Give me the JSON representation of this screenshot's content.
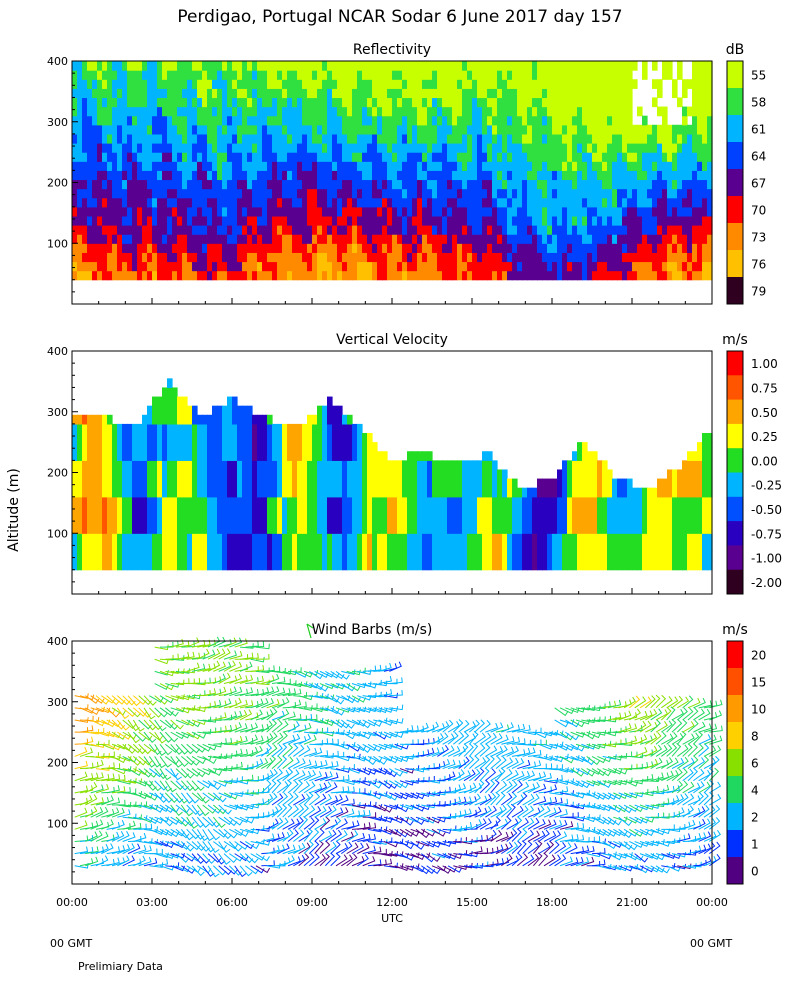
{
  "header": {
    "title": "Perdigao, Portugal  NCAR Sodar   6 June 2017  day 157"
  },
  "footer": {
    "left_gmt": "00 GMT",
    "right_gmt": "00 GMT",
    "note": "Prelimiary Data"
  },
  "chart_data": [
    {
      "type": "heatmap",
      "title": "Reflectivity",
      "unit": "dB",
      "ylabel": "Altitude (m)",
      "ylim": [
        0,
        400
      ],
      "yticks": [
        100,
        200,
        300,
        400
      ],
      "colorbar": [
        "55",
        "58",
        "61",
        "64",
        "67",
        "70",
        "73",
        "76",
        "79"
      ],
      "colors": [
        "#c8ff00",
        "#30e040",
        "#00b4ff",
        "#0040ff",
        "#5a0090",
        "#ff0000",
        "#ff8a00",
        "#ffc000",
        "#300020"
      ],
      "series_sample": {
        "hours": [
          0,
          2,
          4,
          6,
          8,
          10,
          12,
          14,
          16,
          18,
          20,
          22,
          24
        ],
        "mean_dB_at_100m": [
          71,
          70,
          69,
          68,
          72,
          72,
          71,
          70,
          68,
          64,
          66,
          71,
          72
        ],
        "mean_dB_at_300m": [
          63,
          63,
          62,
          61,
          62,
          61,
          60,
          60,
          60,
          58,
          56,
          56,
          58
        ]
      }
    },
    {
      "type": "heatmap",
      "title": "Vertical Velocity",
      "unit": "m/s",
      "ylabel": "Altitude (m)",
      "ylim": [
        0,
        400
      ],
      "yticks": [
        100,
        200,
        300,
        400
      ],
      "colorbar": [
        "1.00",
        "0.75",
        "0.50",
        "0.25",
        "0.00",
        "-0.25",
        "-0.50",
        "-0.75",
        "-1.00",
        "-2.00"
      ],
      "colors": [
        "#ff0000",
        "#ff5500",
        "#ffa500",
        "#ffff00",
        "#22dd22",
        "#00b4ff",
        "#0050ff",
        "#2a00c0",
        "#5a0090",
        "#300020"
      ],
      "top_of_data_m": [
        300,
        300,
        280,
        360,
        300,
        330,
        300,
        280,
        330,
        280,
        230,
        240,
        220,
        240,
        180,
        200,
        260,
        200,
        180,
        220,
        280
      ]
    },
    {
      "type": "scatter",
      "title": "Wind Barbs (m/s)",
      "unit": "m/s",
      "ylabel": "Altitude (m)",
      "xlabel": "UTC",
      "ylim": [
        0,
        400
      ],
      "yticks": [
        100,
        200,
        300,
        400
      ],
      "xticks": [
        "00:00",
        "03:00",
        "06:00",
        "09:00",
        "12:00",
        "15:00",
        "18:00",
        "21:00",
        "00:00"
      ],
      "colorbar": [
        "20",
        "15",
        "10",
        "8",
        "6",
        "4",
        "2",
        "1",
        "0"
      ],
      "colors": [
        "#ff0000",
        "#ff5000",
        "#ff9a00",
        "#ffd000",
        "#88e000",
        "#20d860",
        "#00b4ff",
        "#0030ff",
        "#500080"
      ],
      "speed_profile_sample": {
        "hours": [
          0,
          3,
          6,
          9,
          12,
          15,
          18,
          21,
          24
        ],
        "speed_at_200m": [
          9,
          5,
          5,
          3,
          2,
          3,
          3,
          6,
          4
        ]
      }
    }
  ]
}
